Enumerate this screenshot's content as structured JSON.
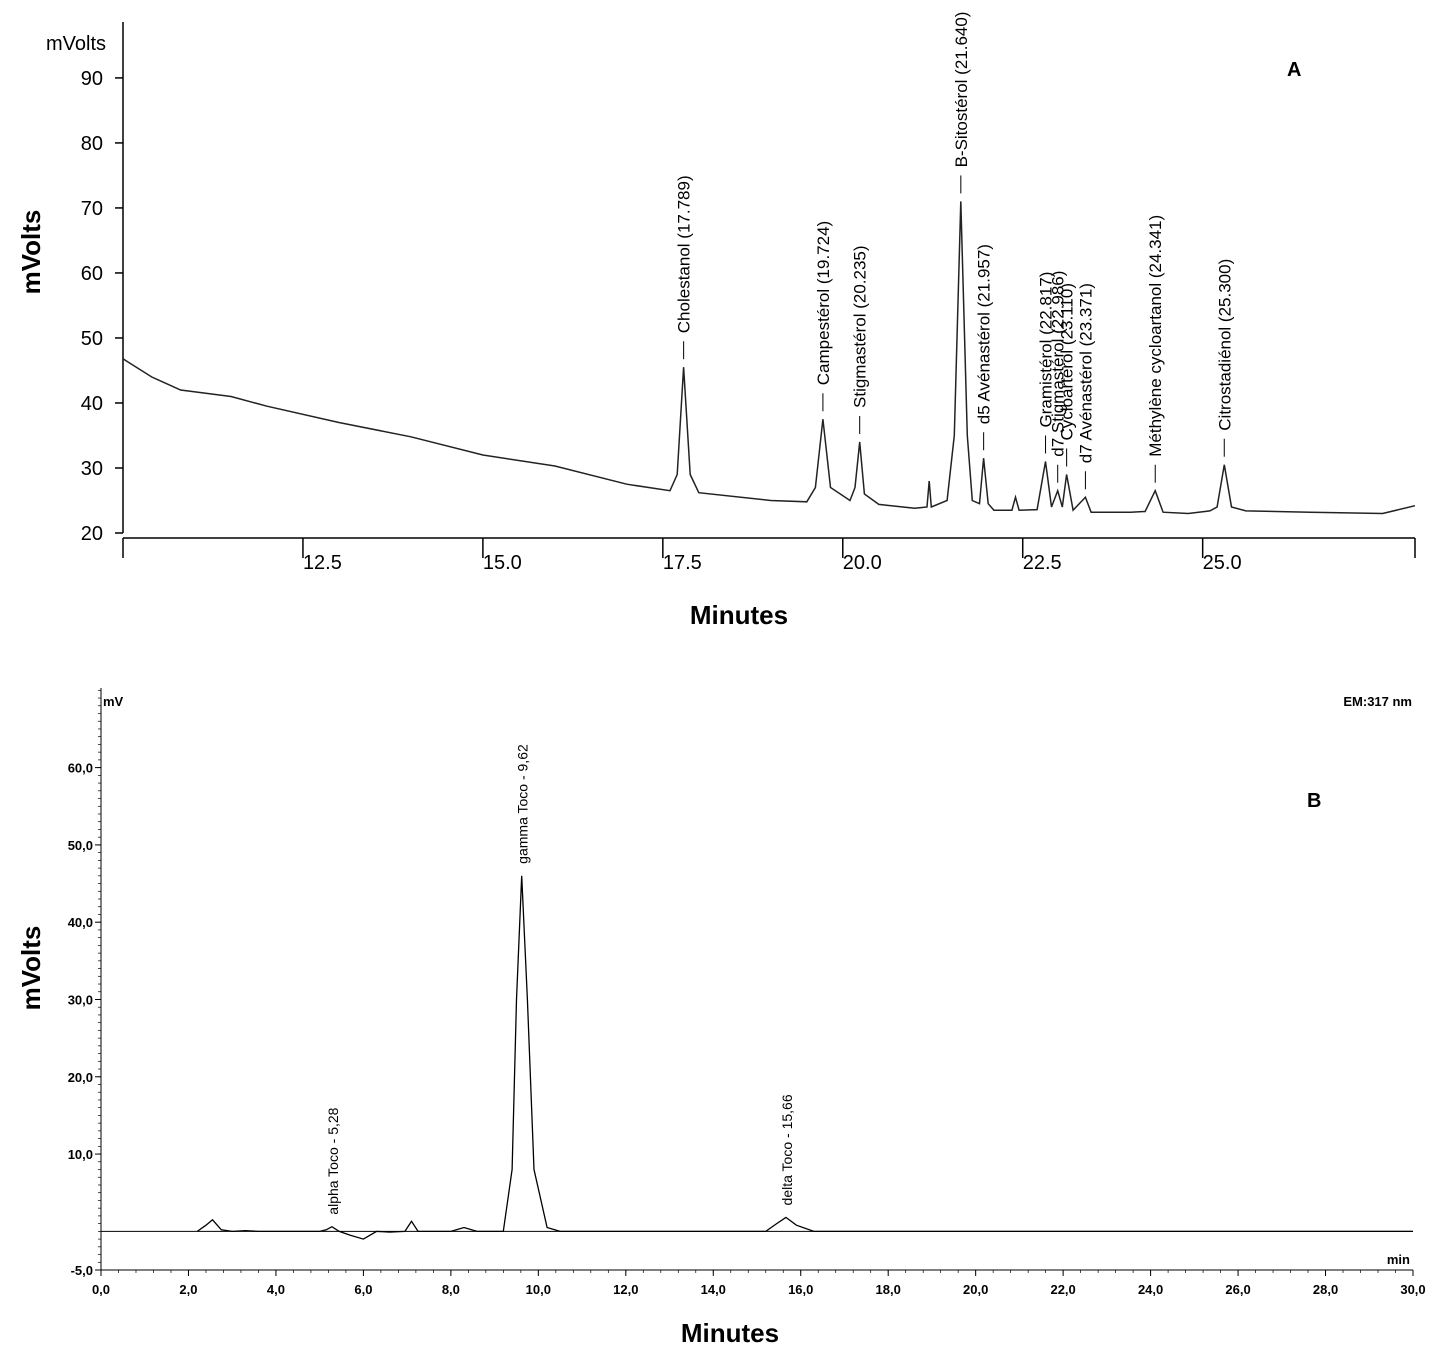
{
  "chart_data": [
    {
      "type": "line",
      "panel_label": "A",
      "unit_label": "mVolts",
      "y_label": "mVolts",
      "x_label": "Minutes",
      "xlim": [
        10,
        27.95
      ],
      "ylim": [
        20,
        98.6
      ],
      "xticks": [
        12.5,
        {
          "value": 15,
          "label": "15.0"
        },
        17.5,
        {
          "value": 20,
          "label": "20.0"
        },
        22.5,
        {
          "value": 25,
          "label": "25.0"
        }
      ],
      "yticks": [
        20,
        30,
        40,
        50,
        60,
        70,
        80,
        90
      ],
      "color": "#222222",
      "x": [
        10.0,
        10.4,
        10.8,
        11.5,
        12,
        13,
        14,
        15,
        16,
        17,
        17.6,
        17.7,
        17.789,
        17.88,
        18,
        19,
        19.5,
        19.62,
        19.724,
        19.83,
        20.1,
        20.17,
        20.235,
        20.3,
        20.5,
        21,
        21.17,
        21.2,
        21.23,
        21.45,
        21.55,
        21.64,
        21.73,
        21.8,
        21.9,
        21.957,
        22.02,
        22.1,
        22.35,
        22.4,
        22.45,
        22.7,
        22.817,
        22.9,
        22.986,
        23.05,
        23.11,
        23.2,
        23.371,
        23.45,
        24,
        24.2,
        24.341,
        24.45,
        24.8,
        25.1,
        25.2,
        25.3,
        25.4,
        25.6,
        26.5,
        27.5,
        27.95
      ],
      "values": [
        46.8,
        44,
        42,
        41,
        39.5,
        37,
        34.8,
        32,
        30.3,
        27.5,
        26.5,
        29,
        45.5,
        29,
        26.2,
        25,
        24.8,
        27,
        37.5,
        27,
        25,
        27,
        34,
        26,
        24.4,
        23.8,
        24,
        28,
        24,
        25,
        35,
        71,
        35,
        25,
        24.5,
        31.5,
        24.5,
        23.5,
        23.5,
        25.5,
        23.5,
        23.6,
        31,
        24,
        26.5,
        24,
        29,
        23.5,
        25.5,
        23.2,
        23.2,
        23.3,
        26.5,
        23.2,
        23,
        23.4,
        24,
        30.5,
        24,
        23.4,
        23.2,
        23,
        24.2
      ],
      "annotations": [
        {
          "text": "Cholestanol (17.789)",
          "x": 17.789
        },
        {
          "text": "Campestérol (19.724)",
          "x": 19.724
        },
        {
          "text": "Stigmastérol (20.235)",
          "x": 20.235
        },
        {
          "text": "B-Sitostérol (21.640)",
          "x": 21.64
        },
        {
          "text": "d5 Avénastérol (21.957)",
          "x": 21.957
        },
        {
          "text": "Gramistérol (22.817)",
          "x": 22.817
        },
        {
          "text": "d7 Stigmastérol (22.986)",
          "x": 22.986
        },
        {
          "text": "Cycloartérol (23.110)",
          "x": 23.11
        },
        {
          "text": "d7 Avénastérol (23.371)",
          "x": 23.371
        },
        {
          "text": "Méthylène cycloartanol (24.341)",
          "x": 24.341
        },
        {
          "text": "Citrostadiénol (25.300)",
          "x": 25.3
        }
      ]
    },
    {
      "type": "line",
      "panel_label": "B",
      "unit_label": "mV",
      "detector": "EM:317 nm",
      "x_unit": "min",
      "y_label": "mVolts",
      "x_label": "Minutes",
      "xlim": [
        0,
        30
      ],
      "ylim": [
        -5,
        70.3
      ],
      "xticks": [
        {
          "value": 0,
          "label": "0,0"
        },
        {
          "value": 2,
          "label": "2,0"
        },
        {
          "value": 4,
          "label": "4,0"
        },
        {
          "value": 6,
          "label": "6,0"
        },
        {
          "value": 8,
          "label": "8,0"
        },
        {
          "value": 10,
          "label": "10,0"
        },
        {
          "value": 12,
          "label": "12,0"
        },
        {
          "value": 14,
          "label": "14,0"
        },
        {
          "value": 16,
          "label": "16,0"
        },
        {
          "value": 18,
          "label": "18,0"
        },
        {
          "value": 20,
          "label": "20,0"
        },
        {
          "value": 22,
          "label": "22,0"
        },
        {
          "value": 24,
          "label": "24,0"
        },
        {
          "value": 26,
          "label": "26,0"
        },
        {
          "value": 28,
          "label": "28,0"
        },
        {
          "value": 30,
          "label": "30,0"
        }
      ],
      "yticks": [
        {
          "value": -5,
          "label": "-5,0"
        },
        {
          "value": 10,
          "label": "10,0"
        },
        {
          "value": 20,
          "label": "20,0"
        },
        {
          "value": 30,
          "label": "30,0"
        },
        {
          "value": 40,
          "label": "40,0"
        },
        {
          "value": 50,
          "label": "50,0"
        },
        {
          "value": 60,
          "label": "60,0"
        }
      ],
      "color": "#000000",
      "x": [
        2.2,
        2.4,
        2.55,
        2.75,
        3.0,
        3.3,
        3.6,
        5.0,
        5.15,
        5.28,
        5.45,
        5.7,
        6.0,
        6.3,
        6.6,
        6.95,
        7.1,
        7.25,
        7.5,
        8.0,
        8.3,
        8.6,
        9.2,
        9.4,
        9.5,
        9.62,
        9.75,
        9.9,
        10.2,
        10.5,
        15.2,
        15.45,
        15.66,
        15.9,
        16.3,
        30
      ],
      "values": [
        0,
        0.8,
        1.5,
        0.2,
        0,
        0.1,
        0,
        0,
        0.2,
        0.6,
        0,
        -0.5,
        -1,
        0,
        -0.1,
        0,
        1.3,
        0,
        0,
        0,
        0.5,
        0,
        0,
        8,
        30,
        46,
        30,
        8,
        0.5,
        0,
        0,
        1,
        1.8,
        0.8,
        0,
        0
      ],
      "annotations": [
        {
          "text": "alpha Toco - 5,28",
          "x": 5.28
        },
        {
          "text": "gamma Toco - 9,62",
          "x": 9.62
        },
        {
          "text": "delta Toco - 15,66",
          "x": 15.66
        }
      ]
    }
  ]
}
